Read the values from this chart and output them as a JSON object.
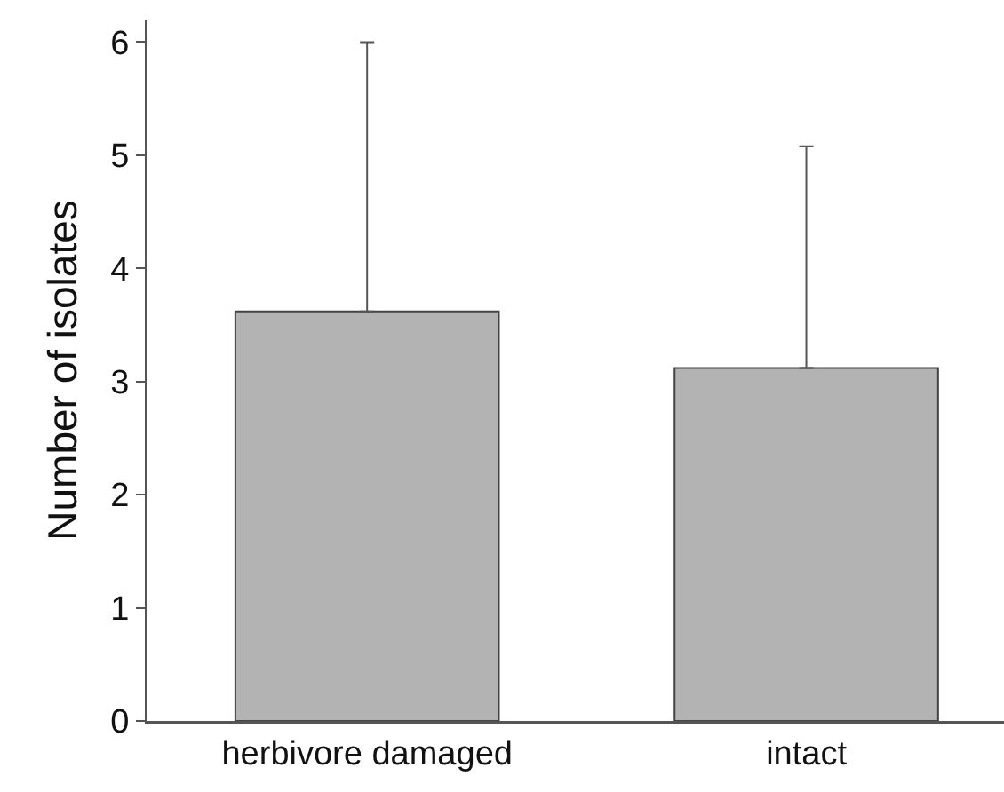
{
  "chart_data": {
    "type": "bar",
    "ylabel": "Number of isolates",
    "categories": [
      "herbivore damaged",
      "intact"
    ],
    "values": [
      3.62,
      3.12
    ],
    "errors": [
      [
        3.62,
        6.0
      ],
      [
        3.12,
        5.08
      ]
    ],
    "color": "#b3b3b3",
    "ylim": [
      0,
      6.2
    ],
    "yticks": [
      0,
      1,
      2,
      3,
      4,
      5,
      6
    ]
  }
}
